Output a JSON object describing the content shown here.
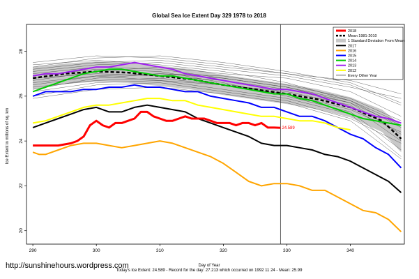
{
  "chart_data": {
    "type": "line",
    "title": "Global Sea Ice Extent Day 329 1978 to 2018",
    "xlabel": "Day of Year",
    "ylabel": "Ice Extent in millions of sq. km",
    "xlim": [
      289,
      348.5
    ],
    "ylim": [
      19.4,
      29.2
    ],
    "x_ticks": [
      290,
      300,
      310,
      320,
      330,
      340
    ],
    "y_ticks": [
      20,
      22,
      24,
      26,
      28
    ],
    "grid": false,
    "legend_position": "top-right",
    "current_day": 329,
    "annotation": "24.589",
    "footnote": "Today's Ice Extent: 24.589  - Record for the day: 27.213 which occurred on 1992 11 24  - Mean: 25.99",
    "watermark": "http://sunshinehours.wordpress.com",
    "legend": [
      {
        "label": "2018",
        "color": "#ff0000",
        "style": "solid-thick"
      },
      {
        "label": "Mean 1981-2010",
        "color": "#000000",
        "style": "dashed"
      },
      {
        "label": "1 Standard Deviation From Mean",
        "color": "#bebebe",
        "style": "band"
      },
      {
        "label": "2017",
        "color": "#000000",
        "style": "solid"
      },
      {
        "label": "2016",
        "color": "#ffa500",
        "style": "solid"
      },
      {
        "label": "2015",
        "color": "#0000ff",
        "style": "solid"
      },
      {
        "label": "2014",
        "color": "#00cc00",
        "style": "solid"
      },
      {
        "label": "2013",
        "color": "#a020f0",
        "style": "solid"
      },
      {
        "label": "2012",
        "color": "#ffff00",
        "style": "solid"
      },
      {
        "label": "Every Other Year",
        "color": "#000000",
        "style": "thin"
      }
    ],
    "mean": {
      "x": [
        290,
        295,
        300,
        305,
        310,
        315,
        320,
        325,
        330,
        335,
        340,
        345,
        348
      ],
      "y": [
        26.8,
        27.0,
        27.1,
        27.05,
        26.9,
        26.75,
        26.5,
        26.3,
        26.1,
        25.85,
        25.5,
        24.9,
        24.1
      ]
    },
    "sd_band": {
      "x": [
        290,
        295,
        300,
        305,
        310,
        315,
        320,
        325,
        330,
        335,
        340,
        345,
        348
      ],
      "upper": [
        27.3,
        27.45,
        27.55,
        27.5,
        27.35,
        27.2,
        26.95,
        26.75,
        26.55,
        26.3,
        25.95,
        25.4,
        24.7
      ],
      "lower": [
        26.3,
        26.55,
        26.65,
        26.6,
        26.45,
        26.3,
        26.05,
        25.85,
        25.65,
        25.4,
        25.05,
        24.4,
        23.5
      ]
    },
    "series": [
      {
        "name": "2018",
        "color": "#ff0000",
        "width": 3,
        "x": [
          290,
          292,
          294,
          296,
          297,
          298,
          299,
          300,
          301,
          302,
          303,
          304,
          305,
          306,
          307,
          308,
          309,
          310,
          311,
          312,
          313,
          314,
          315,
          316,
          317,
          318,
          319,
          320,
          321,
          322,
          323,
          324,
          325,
          326,
          327,
          328,
          329
        ],
        "y": [
          23.8,
          23.8,
          23.8,
          23.9,
          24.0,
          24.2,
          24.7,
          24.9,
          24.7,
          24.6,
          24.8,
          24.8,
          24.9,
          25.0,
          25.3,
          25.3,
          25.1,
          25.0,
          24.9,
          24.9,
          25.0,
          25.1,
          25.0,
          25.0,
          25.0,
          24.9,
          24.8,
          24.8,
          24.8,
          24.7,
          24.8,
          24.8,
          24.7,
          24.8,
          24.6,
          24.6,
          24.589
        ]
      },
      {
        "name": "2017",
        "color": "#000000",
        "width": 2,
        "x": [
          290,
          292,
          294,
          296,
          298,
          300,
          302,
          304,
          306,
          308,
          310,
          312,
          314,
          316,
          318,
          320,
          322,
          324,
          326,
          328,
          330,
          332,
          334,
          336,
          338,
          340,
          342,
          344,
          346,
          348
        ],
        "y": [
          24.6,
          24.8,
          25.0,
          25.2,
          25.4,
          25.5,
          25.3,
          25.3,
          25.5,
          25.6,
          25.5,
          25.4,
          25.3,
          25.0,
          24.8,
          24.6,
          24.4,
          24.2,
          23.9,
          23.8,
          23.8,
          23.7,
          23.6,
          23.4,
          23.3,
          23.1,
          22.8,
          22.5,
          22.2,
          21.7
        ]
      },
      {
        "name": "2016",
        "color": "#ffa500",
        "width": 2,
        "x": [
          290,
          291,
          292,
          294,
          296,
          298,
          300,
          302,
          304,
          306,
          308,
          310,
          312,
          314,
          316,
          318,
          320,
          322,
          324,
          326,
          328,
          330,
          332,
          334,
          336,
          338,
          340,
          342,
          344,
          346,
          348
        ],
        "y": [
          23.5,
          23.4,
          23.4,
          23.6,
          23.8,
          23.9,
          23.9,
          23.8,
          23.7,
          23.8,
          23.9,
          24.0,
          23.9,
          23.7,
          23.5,
          23.3,
          23.0,
          22.6,
          22.2,
          22.0,
          22.1,
          22.1,
          22.0,
          21.8,
          21.8,
          21.5,
          21.2,
          20.9,
          20.8,
          20.5,
          19.95
        ]
      },
      {
        "name": "2015",
        "color": "#0000ff",
        "width": 2,
        "x": [
          290,
          292,
          294,
          296,
          298,
          300,
          302,
          304,
          306,
          308,
          310,
          312,
          314,
          316,
          318,
          320,
          322,
          324,
          326,
          328,
          330,
          332,
          334,
          336,
          338,
          340,
          342,
          344,
          346,
          348
        ],
        "y": [
          26.0,
          26.2,
          26.2,
          26.2,
          26.3,
          26.3,
          26.4,
          26.4,
          26.5,
          26.4,
          26.4,
          26.3,
          26.2,
          26.2,
          26.0,
          25.9,
          25.8,
          25.7,
          25.5,
          25.5,
          25.3,
          25.1,
          25.1,
          24.9,
          24.6,
          24.3,
          24.1,
          23.7,
          23.4,
          22.8
        ]
      },
      {
        "name": "2014",
        "color": "#00cc00",
        "width": 2,
        "x": [
          290,
          292,
          294,
          296,
          298,
          300,
          302,
          304,
          306,
          308,
          310,
          312,
          314,
          316,
          318,
          320,
          322,
          324,
          326,
          328,
          330,
          332,
          334,
          336,
          338,
          340,
          342,
          344,
          346,
          348
        ],
        "y": [
          26.2,
          26.4,
          26.6,
          26.8,
          27.0,
          27.1,
          27.2,
          27.2,
          27.1,
          27.0,
          26.9,
          26.9,
          26.8,
          26.7,
          26.6,
          26.5,
          26.4,
          26.3,
          26.2,
          26.1,
          26.1,
          25.9,
          25.8,
          25.6,
          25.4,
          25.2,
          25.0,
          24.9,
          24.8,
          24.7
        ]
      },
      {
        "name": "2013",
        "color": "#a020f0",
        "width": 2,
        "x": [
          290,
          292,
          294,
          296,
          298,
          300,
          302,
          304,
          306,
          308,
          310,
          312,
          314,
          316,
          318,
          320,
          322,
          324,
          326,
          328,
          330,
          332,
          334,
          336,
          338,
          340,
          342,
          344,
          346,
          348
        ],
        "y": [
          26.9,
          27.0,
          27.0,
          27.1,
          27.2,
          27.3,
          27.3,
          27.4,
          27.5,
          27.4,
          27.3,
          27.2,
          27.0,
          26.9,
          26.8,
          26.7,
          26.6,
          26.5,
          26.4,
          26.3,
          26.3,
          26.2,
          26.1,
          25.9,
          25.7,
          25.5,
          25.3,
          25.1,
          25.0,
          24.8
        ]
      },
      {
        "name": "2012",
        "color": "#ffff00",
        "width": 2,
        "x": [
          290,
          292,
          294,
          296,
          298,
          300,
          302,
          304,
          306,
          308,
          310,
          312,
          314,
          316,
          318,
          320,
          322,
          324,
          326,
          328,
          330,
          332,
          334,
          336,
          338,
          340
        ],
        "y": [
          24.8,
          24.9,
          25.1,
          25.3,
          25.5,
          25.6,
          25.6,
          25.7,
          25.8,
          25.9,
          25.9,
          25.8,
          25.8,
          25.6,
          25.5,
          25.4,
          25.3,
          25.2,
          25.1,
          25.1,
          25.0,
          24.9,
          24.9,
          24.8,
          24.6,
          24.5
        ]
      }
    ],
    "other_years": [
      {
        "x": [
          290,
          300,
          310,
          320,
          330,
          340,
          348
        ],
        "y": [
          27.2,
          27.5,
          27.6,
          27.3,
          27.0,
          26.5,
          25.6
        ]
      },
      {
        "x": [
          290,
          300,
          310,
          320,
          330,
          340,
          348
        ],
        "y": [
          26.5,
          26.9,
          27.0,
          26.9,
          26.5,
          25.9,
          24.9
        ]
      },
      {
        "x": [
          290,
          300,
          310,
          320,
          330,
          340,
          348
        ],
        "y": [
          27.0,
          27.3,
          27.2,
          26.8,
          26.4,
          25.7,
          24.3
        ]
      },
      {
        "x": [
          290,
          300,
          310,
          320,
          330,
          340,
          348
        ],
        "y": [
          26.7,
          27.1,
          27.3,
          27.0,
          26.8,
          26.2,
          25.1
        ]
      },
      {
        "x": [
          290,
          300,
          310,
          320,
          330,
          340,
          348
        ],
        "y": [
          27.4,
          27.6,
          27.4,
          27.1,
          26.6,
          25.8,
          24.6
        ]
      },
      {
        "x": [
          290,
          300,
          310,
          320,
          330,
          340,
          348
        ],
        "y": [
          26.4,
          26.7,
          26.8,
          26.5,
          26.2,
          25.6,
          24.0
        ]
      },
      {
        "x": [
          290,
          300,
          310,
          320,
          330,
          340,
          348
        ],
        "y": [
          26.9,
          27.2,
          27.1,
          26.6,
          26.0,
          25.3,
          23.6
        ]
      },
      {
        "x": [
          290,
          300,
          310,
          320,
          330,
          340,
          348
        ],
        "y": [
          27.1,
          27.4,
          27.5,
          27.2,
          26.9,
          26.4,
          25.9
        ]
      },
      {
        "x": [
          290,
          300,
          310,
          320,
          330,
          340,
          348
        ],
        "y": [
          26.6,
          26.9,
          26.7,
          26.3,
          25.9,
          25.2,
          23.3
        ]
      },
      {
        "x": [
          290,
          300,
          310,
          320,
          330,
          340,
          348
        ],
        "y": [
          26.2,
          26.6,
          26.7,
          26.5,
          26.1,
          25.4,
          24.4
        ]
      },
      {
        "x": [
          290,
          300,
          310,
          320,
          330,
          340,
          348
        ],
        "y": [
          27.3,
          27.7,
          27.8,
          27.5,
          27.1,
          26.6,
          25.7
        ]
      },
      {
        "x": [
          290,
          300,
          310,
          320,
          330,
          340,
          348
        ],
        "y": [
          25.9,
          26.3,
          26.4,
          26.1,
          25.7,
          24.9,
          23.2
        ]
      },
      {
        "x": [
          290,
          300,
          310,
          320,
          330,
          340,
          348
        ],
        "y": [
          26.8,
          27.0,
          26.9,
          26.7,
          26.3,
          25.7,
          24.7
        ]
      },
      {
        "x": [
          290,
          300,
          310,
          320,
          330,
          340,
          348
        ],
        "y": [
          27.5,
          27.8,
          27.7,
          27.4,
          27.0,
          26.7,
          26.1
        ]
      },
      {
        "x": [
          290,
          300,
          310,
          320,
          330,
          340,
          348
        ],
        "y": [
          26.3,
          26.8,
          27.0,
          26.8,
          26.4,
          25.8,
          24.8
        ]
      },
      {
        "x": [
          290,
          300,
          310,
          320,
          330,
          340,
          348
        ],
        "y": [
          26.0,
          26.5,
          26.6,
          26.2,
          25.8,
          25.0,
          23.9
        ]
      }
    ]
  }
}
